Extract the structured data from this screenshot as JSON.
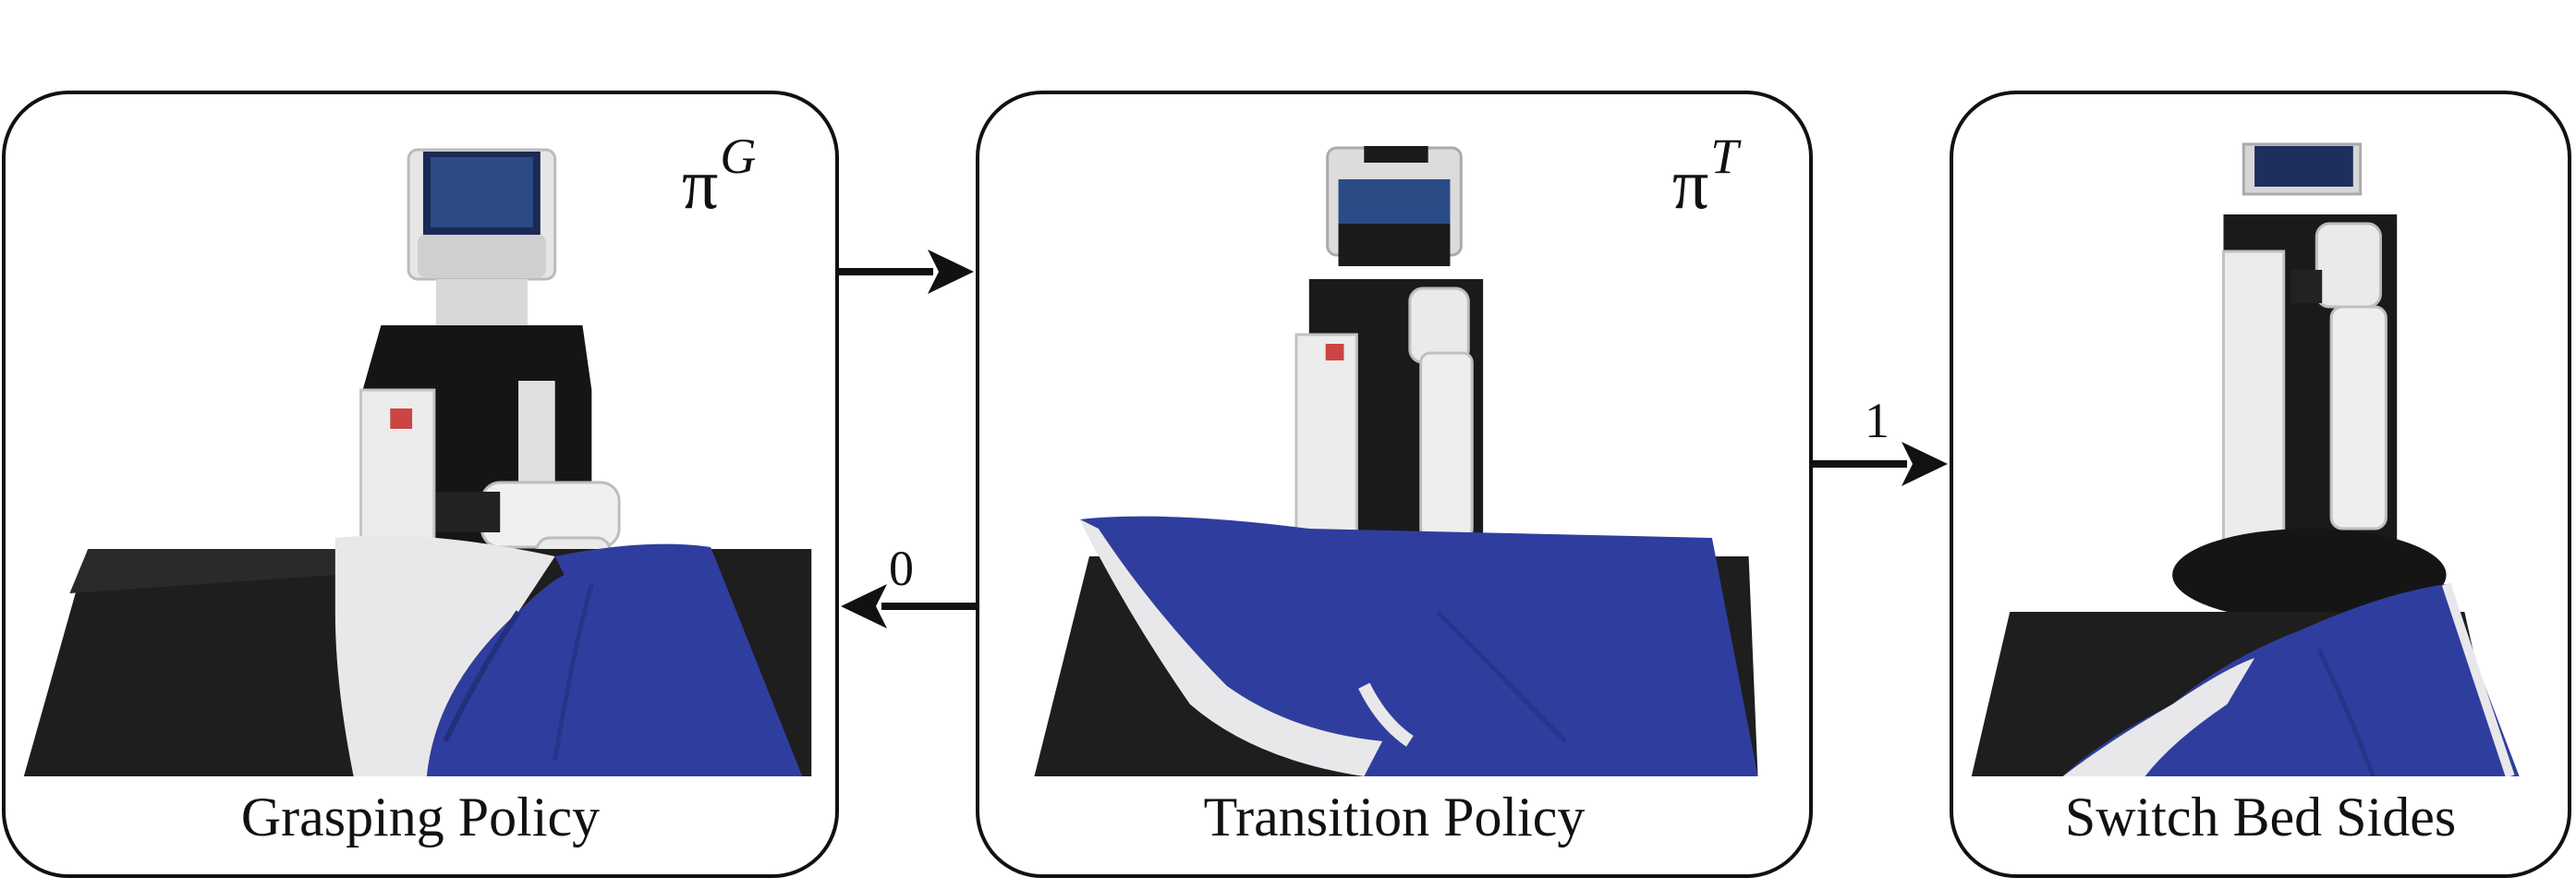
{
  "nodes": {
    "grasping": {
      "symbol": "π",
      "superscript": "G",
      "caption": "Grasping Policy",
      "photo": "robot-grasping-blue-shirt-photo"
    },
    "transition": {
      "symbol": "π",
      "superscript": "T",
      "caption": "Transition Policy",
      "photo": "robot-behind-spread-shirt-photo"
    },
    "switch": {
      "caption": "Switch Bed Sides",
      "photo": "robot-side-view-shirt-photo"
    }
  },
  "edges": {
    "grasp_to_transition": {
      "label": ""
    },
    "transition_to_grasp": {
      "label": "0"
    },
    "transition_to_switch": {
      "label": "1"
    }
  },
  "colors": {
    "shirt_blue": "#2f3e9e",
    "shirt_white": "#e8e8ea",
    "table_black": "#1e1e1e",
    "robot_white": "#e9e9e9",
    "robot_black": "#151515",
    "border": "#111111"
  }
}
